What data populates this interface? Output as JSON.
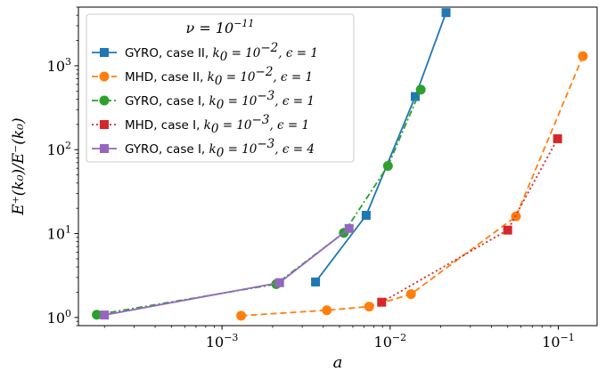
{
  "chart_data": {
    "type": "line",
    "xscale": "log",
    "yscale": "log",
    "xlim": [
      0.00014,
      0.17
    ],
    "ylim": [
      0.8,
      5000
    ],
    "xlabel": "a",
    "ylabel": "E⁺(k₀)/E⁻(k₀)",
    "x_ticks": [
      {
        "value": 0.001,
        "base": "10",
        "exp": "−3"
      },
      {
        "value": 0.01,
        "base": "10",
        "exp": "−2"
      },
      {
        "value": 0.1,
        "base": "10",
        "exp": "−1"
      }
    ],
    "y_ticks": [
      {
        "value": 1,
        "base": "10",
        "exp": "0"
      },
      {
        "value": 10,
        "base": "10",
        "exp": "1"
      },
      {
        "value": 100,
        "base": "10",
        "exp": "2"
      },
      {
        "value": 1000,
        "base": "10",
        "exp": "3"
      }
    ],
    "legend_title": {
      "prefix": "ν = 10",
      "exp": "−11"
    },
    "legend_position": "upper-left",
    "grid": false,
    "series": [
      {
        "code": "GYRO, case II, ",
        "k0": "10",
        "k0_exp": "−2",
        "eps": "1",
        "color": "#1f77b4",
        "marker": "square",
        "dash": "solid",
        "x": [
          0.0036,
          0.0072,
          0.0141,
          0.0215
        ],
        "y": [
          2.65,
          16.5,
          430,
          4300
        ]
      },
      {
        "code": "MHD, case II, ",
        "k0": "10",
        "k0_exp": "−2",
        "eps": "1",
        "color": "#ff7f0e",
        "marker": "circle",
        "dash": "dashed",
        "x": [
          0.0013,
          0.0042,
          0.0075,
          0.0133,
          0.056,
          0.14
        ],
        "y": [
          1.05,
          1.22,
          1.35,
          1.9,
          16,
          1300
        ]
      },
      {
        "code": "GYRO, case I, ",
        "k0": "10",
        "k0_exp": "−3",
        "eps": "1",
        "color": "#2ca02c",
        "marker": "circle",
        "dash": "dashdot",
        "x": [
          0.00018,
          0.0021,
          0.0053,
          0.0097,
          0.0152
        ],
        "y": [
          1.08,
          2.5,
          10.2,
          64,
          520
        ]
      },
      {
        "code": "MHD, case I, ",
        "k0": "10",
        "k0_exp": "−3",
        "eps": "1",
        "color": "#d62728",
        "marker": "square",
        "dash": "dotted",
        "x": [
          0.0089,
          0.05,
          0.099
        ],
        "y": [
          1.52,
          11,
          135
        ]
      },
      {
        "code": "GYRO, case I, ",
        "k0": "10",
        "k0_exp": "−3",
        "eps": "4",
        "color": "#9467bd",
        "marker": "square",
        "dash": "solid",
        "x": [
          0.0002,
          0.0022,
          0.0057
        ],
        "y": [
          1.07,
          2.6,
          11.5
        ]
      }
    ]
  }
}
